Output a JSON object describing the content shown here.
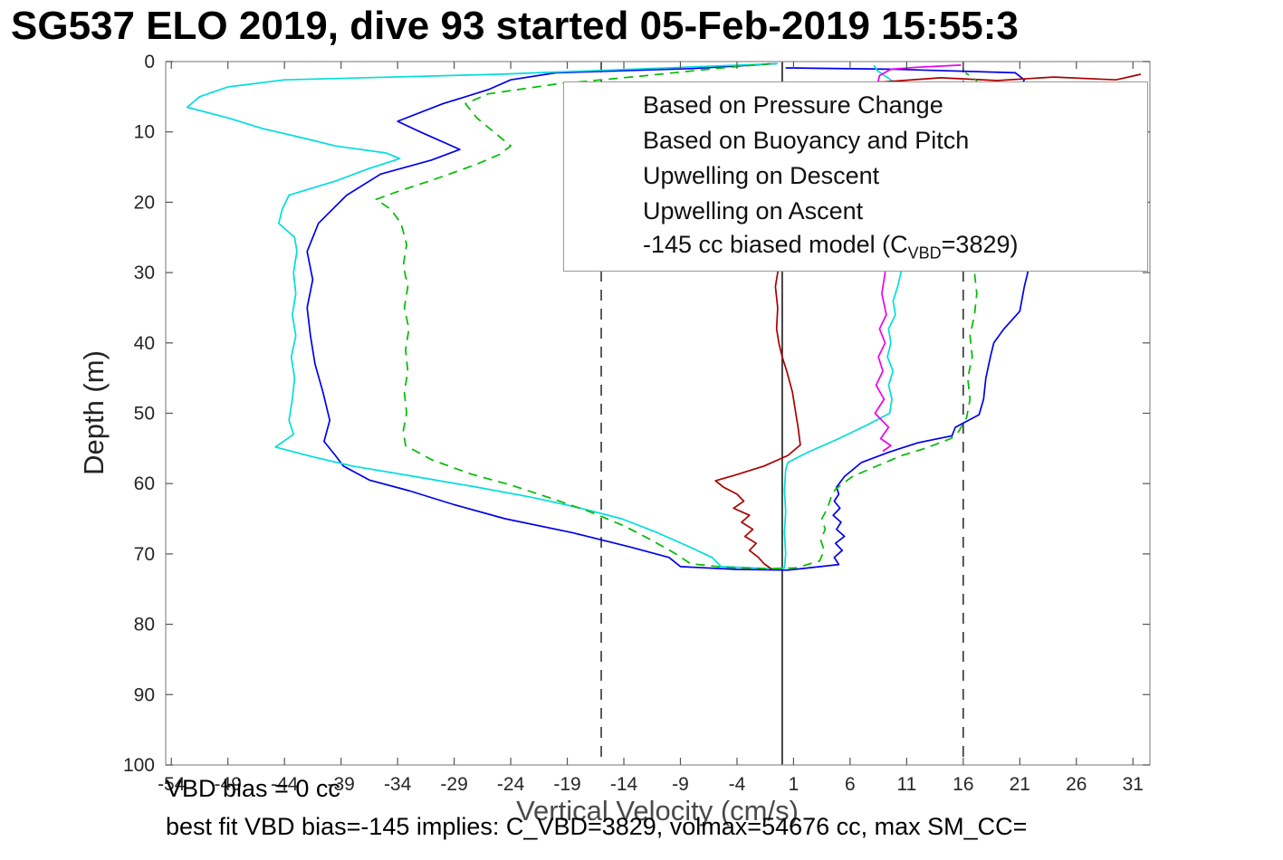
{
  "page": {
    "title": "SG537 ELO 2019, dive 93 started 05-Feb-2019 15:55:3"
  },
  "annotations": {
    "line1": "VBD bias = 0 cc",
    "line2": "best fit VBD bias=-145 implies: C_VBD=3829, volmax=54676 cc, max SM_CC="
  },
  "legend": {
    "entries": [
      {
        "label": "Based on Pressure Change",
        "color": "#0000ee",
        "dash": false
      },
      {
        "label": "Based on Buoyancy and Pitch",
        "color": "#00dddd",
        "dash": false
      },
      {
        "label": "Upwelling on Descent",
        "color": "#aa0000",
        "dash": false
      },
      {
        "label": "Upwelling on Ascent",
        "color": "#ee00ee",
        "dash": false
      },
      {
        "label_pre": "-145 cc biased model (C",
        "label_sub": "VBD",
        "label_post": "=3829)",
        "color": "#00bb00",
        "dash": true
      }
    ]
  },
  "chart_data": {
    "type": "line",
    "title": "SG537 ELO 2019, dive 93 started 05-Feb-2019 15:55:3",
    "xlabel": "Vertical Velocity (cm/s)",
    "ylabel": "Depth (m)",
    "xlim": [
      -54.5,
      32.5
    ],
    "ylim": [
      0,
      100
    ],
    "y_inverted": true,
    "grid": false,
    "legend_position": "top-right-inside",
    "xticks": [
      -54,
      -49,
      -44,
      -39,
      -34,
      -29,
      -24,
      -19,
      -14,
      -9,
      -4,
      1,
      6,
      11,
      16,
      21,
      26,
      31
    ],
    "yticks": [
      0,
      10,
      20,
      30,
      40,
      50,
      60,
      70,
      80,
      90,
      100
    ],
    "ref_lines": [
      {
        "x": 0,
        "style": "solid",
        "color": "#1a1a1a"
      },
      {
        "x": -16,
        "style": "dashed",
        "color": "#333333"
      },
      {
        "x": 16,
        "style": "dashed",
        "color": "#333333"
      }
    ],
    "series": [
      {
        "name": "Based on Pressure Change",
        "color": "#0000ee",
        "dash": false,
        "points": [
          [
            -0.5,
            0.3
          ],
          [
            -8,
            1
          ],
          [
            -20,
            1.6
          ],
          [
            -24,
            2.6
          ],
          [
            -26,
            4
          ],
          [
            -30,
            6
          ],
          [
            -34,
            8.5
          ],
          [
            -32,
            10
          ],
          [
            -28.5,
            12.5
          ],
          [
            -31,
            14
          ],
          [
            -35.5,
            16
          ],
          [
            -38.5,
            19
          ],
          [
            -41,
            23
          ],
          [
            -42,
            27
          ],
          [
            -41.5,
            31
          ],
          [
            -42,
            35
          ],
          [
            -41.7,
            39
          ],
          [
            -41.3,
            43
          ],
          [
            -40.6,
            47
          ],
          [
            -40,
            51
          ],
          [
            -40.5,
            54
          ],
          [
            -39.5,
            56
          ],
          [
            -38.8,
            57.5
          ],
          [
            -36.5,
            59.5
          ],
          [
            -33,
            61
          ],
          [
            -29,
            63
          ],
          [
            -24.5,
            65
          ],
          [
            -18.5,
            67
          ],
          [
            -13.5,
            69
          ],
          [
            -10,
            70.5
          ],
          [
            -9,
            71.8
          ],
          [
            -4,
            72.2
          ],
          [
            0.5,
            72.3
          ],
          [
            5,
            71.5
          ],
          [
            4.6,
            70.5
          ],
          [
            5.3,
            69.5
          ],
          [
            4.7,
            68.5
          ],
          [
            5.5,
            67.5
          ],
          [
            4.8,
            66.5
          ],
          [
            5.2,
            65.5
          ],
          [
            4.5,
            64.5
          ],
          [
            5.1,
            63.5
          ],
          [
            4.6,
            62.5
          ],
          [
            5,
            61.5
          ],
          [
            4.8,
            60.5
          ],
          [
            5.5,
            59
          ],
          [
            7,
            57
          ],
          [
            9.5,
            55.5
          ],
          [
            12,
            54.2
          ],
          [
            15,
            53.2
          ],
          [
            15.3,
            52
          ],
          [
            17.4,
            50.2
          ],
          [
            17.8,
            48
          ],
          [
            18,
            45
          ],
          [
            18.4,
            42
          ],
          [
            18.7,
            40
          ],
          [
            19.6,
            38
          ],
          [
            21,
            35.5
          ],
          [
            21.4,
            32
          ],
          [
            21.7,
            30
          ],
          [
            21.3,
            27
          ],
          [
            21.6,
            24
          ],
          [
            21.1,
            20
          ],
          [
            21.5,
            16
          ],
          [
            21.1,
            12
          ],
          [
            21.8,
            9
          ],
          [
            21.3,
            6
          ],
          [
            20.9,
            4
          ],
          [
            21.4,
            2.6
          ],
          [
            20.6,
            1.6
          ],
          [
            10,
            1.1
          ],
          [
            0.3,
            0.9
          ]
        ]
      },
      {
        "name": "Based on Buoyancy and Pitch",
        "color": "#00dddd",
        "dash": false,
        "points": [
          [
            -0.4,
            0.3
          ],
          [
            -12,
            1
          ],
          [
            -25,
            1.8
          ],
          [
            -44,
            2.6
          ],
          [
            -49,
            3.6
          ],
          [
            -51.5,
            5
          ],
          [
            -52.6,
            6.5
          ],
          [
            -49,
            8
          ],
          [
            -46,
            9.5
          ],
          [
            -42,
            11
          ],
          [
            -39.5,
            12
          ],
          [
            -35,
            13
          ],
          [
            -33.8,
            13.8
          ],
          [
            -36.5,
            15.2
          ],
          [
            -39.5,
            17
          ],
          [
            -43.6,
            19
          ],
          [
            -44.2,
            21
          ],
          [
            -44.5,
            23
          ],
          [
            -43.1,
            25
          ],
          [
            -42.9,
            27
          ],
          [
            -43.2,
            30
          ],
          [
            -43,
            33
          ],
          [
            -43.3,
            36
          ],
          [
            -43,
            39
          ],
          [
            -43.4,
            42
          ],
          [
            -43.1,
            45
          ],
          [
            -43.3,
            48
          ],
          [
            -43.6,
            51
          ],
          [
            -43.2,
            53
          ],
          [
            -44.8,
            54.8
          ],
          [
            -42,
            56
          ],
          [
            -38,
            57.5
          ],
          [
            -32.5,
            59
          ],
          [
            -27,
            60.5
          ],
          [
            -22,
            62
          ],
          [
            -17.8,
            63.5
          ],
          [
            -14.2,
            65
          ],
          [
            -11,
            67
          ],
          [
            -8.2,
            69
          ],
          [
            -6.2,
            70.5
          ],
          [
            -5.4,
            71.8
          ],
          [
            -1,
            72.1
          ],
          [
            0.2,
            72
          ],
          [
            0.3,
            70
          ],
          [
            0.2,
            67
          ],
          [
            0.3,
            64
          ],
          [
            0.2,
            61
          ],
          [
            0.3,
            58
          ],
          [
            0.5,
            57
          ],
          [
            2.2,
            55.6
          ],
          [
            5,
            53.6
          ],
          [
            7.6,
            51.6
          ],
          [
            9.5,
            50
          ],
          [
            9.7,
            48
          ],
          [
            9.4,
            46
          ],
          [
            9.8,
            44
          ],
          [
            9.3,
            42
          ],
          [
            9.6,
            40
          ],
          [
            9.4,
            38
          ],
          [
            10,
            36
          ],
          [
            9.8,
            34
          ],
          [
            10.2,
            32
          ],
          [
            10.5,
            30
          ],
          [
            10.3,
            27
          ],
          [
            10.4,
            24
          ],
          [
            10.2,
            21
          ],
          [
            10.5,
            18
          ],
          [
            10.3,
            15
          ],
          [
            10.6,
            12
          ],
          [
            10.8,
            9
          ],
          [
            11,
            6
          ],
          [
            10.7,
            4
          ],
          [
            9.6,
            2.6
          ],
          [
            8.4,
            1.3
          ],
          [
            8.1,
            0.5
          ]
        ]
      },
      {
        "name": "Upwelling on Descent",
        "color": "#aa0000",
        "dash": false,
        "points": [
          [
            31.7,
            1.8
          ],
          [
            29.5,
            2.6
          ],
          [
            24,
            2.2
          ],
          [
            19,
            2.7
          ],
          [
            14,
            2.3
          ],
          [
            9,
            2.9
          ],
          [
            5,
            3.1
          ],
          [
            3,
            3.3
          ],
          [
            0.6,
            3.6
          ],
          [
            -0.3,
            5
          ],
          [
            -0.4,
            8
          ],
          [
            -0.2,
            11
          ],
          [
            -0.5,
            14
          ],
          [
            -0.3,
            17
          ],
          [
            -0.4,
            20
          ],
          [
            -0.2,
            23
          ],
          [
            -0.5,
            26
          ],
          [
            -0.3,
            29
          ],
          [
            -0.6,
            32
          ],
          [
            -0.4,
            35
          ],
          [
            -0.5,
            38
          ],
          [
            -0.3,
            40
          ],
          [
            0,
            42
          ],
          [
            0.4,
            44
          ],
          [
            0.9,
            47
          ],
          [
            1.2,
            50
          ],
          [
            1.4,
            52
          ],
          [
            1.6,
            54.5
          ],
          [
            0.5,
            56
          ],
          [
            -1.6,
            57.5
          ],
          [
            -4.2,
            58.8
          ],
          [
            -5.9,
            59.6
          ],
          [
            -5.2,
            60.5
          ],
          [
            -4,
            61.5
          ],
          [
            -3.4,
            62.5
          ],
          [
            -4.3,
            63.5
          ],
          [
            -2.9,
            64.5
          ],
          [
            -3.6,
            65.5
          ],
          [
            -2.6,
            66.5
          ],
          [
            -3.3,
            67.5
          ],
          [
            -2.3,
            68.5
          ],
          [
            -2.9,
            69.5
          ],
          [
            -2.1,
            70.5
          ],
          [
            -1.6,
            71.4
          ],
          [
            -0.9,
            72.2
          ]
        ]
      },
      {
        "name": "Upwelling on Ascent",
        "color": "#ee00ee",
        "dash": false,
        "points": [
          [
            15.8,
            0.5
          ],
          [
            12,
            0.8
          ],
          [
            9.6,
            1.1
          ],
          [
            8.6,
            2
          ],
          [
            8.3,
            4
          ],
          [
            8.7,
            6
          ],
          [
            8.4,
            9
          ],
          [
            8.8,
            12
          ],
          [
            8.5,
            15
          ],
          [
            8.9,
            18
          ],
          [
            8.6,
            21
          ],
          [
            9,
            24
          ],
          [
            8.7,
            27
          ],
          [
            9.1,
            30
          ],
          [
            8.8,
            33
          ],
          [
            9.2,
            36
          ],
          [
            8.6,
            38
          ],
          [
            9.1,
            40
          ],
          [
            8.5,
            42
          ],
          [
            8.9,
            44
          ],
          [
            8.3,
            46
          ],
          [
            9,
            48
          ],
          [
            8.2,
            50
          ],
          [
            9.4,
            52
          ],
          [
            8.7,
            53.6
          ],
          [
            9.6,
            54.6
          ],
          [
            8.9,
            55.4
          ]
        ]
      },
      {
        "name": "-145 cc biased model (C_VBD=3829)",
        "color": "#00bb00",
        "dash": true,
        "points": [
          [
            -1,
            0.3
          ],
          [
            -6,
            1
          ],
          [
            -12,
            2
          ],
          [
            -20,
            3.2
          ],
          [
            -26,
            4.6
          ],
          [
            -28,
            6
          ],
          [
            -27,
            8
          ],
          [
            -25.5,
            10
          ],
          [
            -24,
            12
          ],
          [
            -25,
            13.2
          ],
          [
            -27,
            14.6
          ],
          [
            -30.5,
            16.6
          ],
          [
            -34.2,
            18.6
          ],
          [
            -35.9,
            19.6
          ],
          [
            -34.6,
            21
          ],
          [
            -33.7,
            23
          ],
          [
            -33.2,
            26
          ],
          [
            -33.5,
            29
          ],
          [
            -33.1,
            32
          ],
          [
            -33.4,
            35
          ],
          [
            -33,
            38
          ],
          [
            -33.3,
            41
          ],
          [
            -33.1,
            44
          ],
          [
            -33.4,
            47
          ],
          [
            -33.2,
            50
          ],
          [
            -33.5,
            52.5
          ],
          [
            -33.3,
            54.6
          ],
          [
            -31,
            56.6
          ],
          [
            -27.6,
            58.6
          ],
          [
            -24,
            60.2
          ],
          [
            -20.6,
            62
          ],
          [
            -17,
            64
          ],
          [
            -14,
            66
          ],
          [
            -11.6,
            68
          ],
          [
            -9.4,
            70
          ],
          [
            -8.1,
            71.4
          ],
          [
            -5,
            71.9
          ],
          [
            -1,
            72.1
          ],
          [
            1.2,
            72
          ],
          [
            3.3,
            71
          ],
          [
            3.7,
            69.5
          ],
          [
            3.4,
            68
          ],
          [
            3.8,
            66.5
          ],
          [
            3.5,
            65
          ],
          [
            4,
            63.5
          ],
          [
            4.3,
            62
          ],
          [
            4.7,
            60.8
          ],
          [
            6.2,
            59
          ],
          [
            8.2,
            57.6
          ],
          [
            10.6,
            56
          ],
          [
            12.6,
            55
          ],
          [
            14.9,
            53.6
          ],
          [
            15.6,
            52.6
          ],
          [
            16.3,
            50.6
          ],
          [
            16.6,
            48
          ],
          [
            16.4,
            45
          ],
          [
            16.8,
            42
          ],
          [
            16.6,
            39
          ],
          [
            17,
            36
          ],
          [
            17.2,
            33
          ],
          [
            17,
            30
          ],
          [
            17.3,
            27
          ],
          [
            17.1,
            24
          ],
          [
            17.4,
            21
          ],
          [
            17.2,
            18
          ],
          [
            17.5,
            15
          ],
          [
            17.3,
            12
          ],
          [
            17.6,
            9
          ],
          [
            17.4,
            6
          ],
          [
            17.7,
            4
          ],
          [
            17.1,
            2.6
          ],
          [
            16.2,
            1.6
          ]
        ]
      }
    ]
  }
}
